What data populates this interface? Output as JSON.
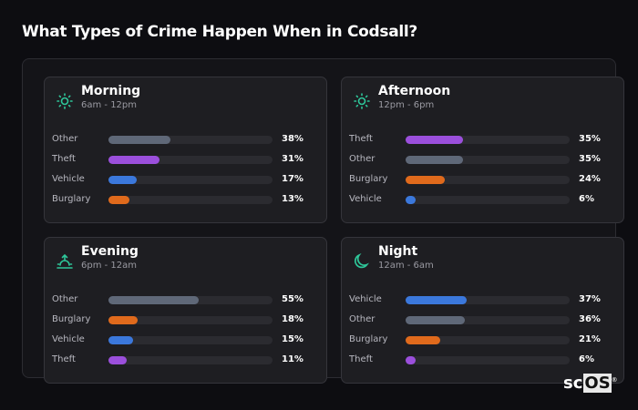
{
  "title": "What Types of Crime Happen When in Codsall?",
  "colors": {
    "Other": "#5f6878",
    "Theft": "#9b4fdc",
    "Vehicle": "#3b78dc",
    "Burglary": "#e06a1c",
    "accent": "#2ec79a"
  },
  "chart_data": [
    {
      "type": "bar",
      "title": "Morning",
      "subtitle": "6am - 12pm",
      "icon": "sun-icon",
      "categories": [
        "Other",
        "Theft",
        "Vehicle",
        "Burglary"
      ],
      "values": [
        38,
        31,
        17,
        13
      ],
      "labels": [
        "38%",
        "31%",
        "17%",
        "13%"
      ]
    },
    {
      "type": "bar",
      "title": "Afternoon",
      "subtitle": "12pm - 6pm",
      "icon": "sun-icon",
      "categories": [
        "Theft",
        "Other",
        "Burglary",
        "Vehicle"
      ],
      "values": [
        35,
        35,
        24,
        6
      ],
      "labels": [
        "35%",
        "35%",
        "24%",
        "6%"
      ]
    },
    {
      "type": "bar",
      "title": "Evening",
      "subtitle": "6pm - 12am",
      "icon": "sunset-icon",
      "categories": [
        "Other",
        "Burglary",
        "Vehicle",
        "Theft"
      ],
      "values": [
        55,
        18,
        15,
        11
      ],
      "labels": [
        "55%",
        "18%",
        "15%",
        "11%"
      ]
    },
    {
      "type": "bar",
      "title": "Night",
      "subtitle": "12am - 6am",
      "icon": "moon-icon",
      "categories": [
        "Vehicle",
        "Other",
        "Burglary",
        "Theft"
      ],
      "values": [
        37,
        36,
        21,
        6
      ],
      "labels": [
        "37%",
        "36%",
        "21%",
        "6%"
      ]
    }
  ],
  "logo": {
    "a": "sc",
    "b": "OS",
    "mark": "®"
  }
}
